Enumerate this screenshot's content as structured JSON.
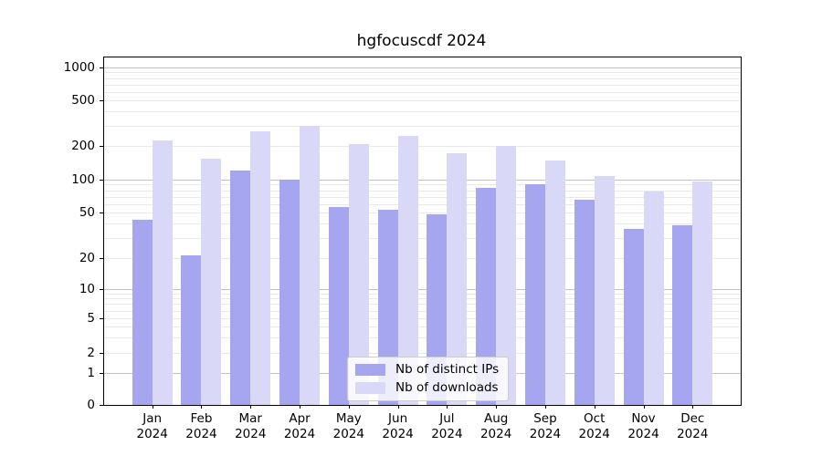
{
  "title": "hgfocuscdf 2024",
  "chart_data": {
    "type": "bar",
    "title": "hgfocuscdf 2024",
    "categories": [
      "Jan 2024",
      "Feb 2024",
      "Mar 2024",
      "Apr 2024",
      "May 2024",
      "Jun 2024",
      "Jul 2024",
      "Aug 2024",
      "Sep 2024",
      "Oct 2024",
      "Nov 2024",
      "Dec 2024"
    ],
    "series": [
      {
        "name": "Nb of distinct IPs",
        "color": "#a5a5f0",
        "values": [
          43,
          21,
          120,
          100,
          56,
          53,
          48,
          84,
          91,
          65,
          36,
          39
        ]
      },
      {
        "name": "Nb of downloads",
        "color": "#d9d9f7",
        "values": [
          225,
          156,
          268,
          300,
          208,
          245,
          175,
          200,
          150,
          107,
          78,
          97
        ]
      }
    ],
    "yticks": [
      0,
      1,
      2,
      5,
      10,
      20,
      50,
      100,
      200,
      500,
      1000
    ],
    "ylim": [
      0,
      1000
    ],
    "yscale": "symlog",
    "xlabel": "",
    "ylabel": "",
    "grid": true,
    "legend_position": "lower center inside",
    "colors": {
      "bar_distinct_ips": "#a5a5f0",
      "bar_downloads": "#d9d9f7",
      "grid_minor": "#e9e9e9",
      "grid_decade": "#c2c2c2",
      "axis": "#000000",
      "legend_border": "#cccccc"
    }
  }
}
